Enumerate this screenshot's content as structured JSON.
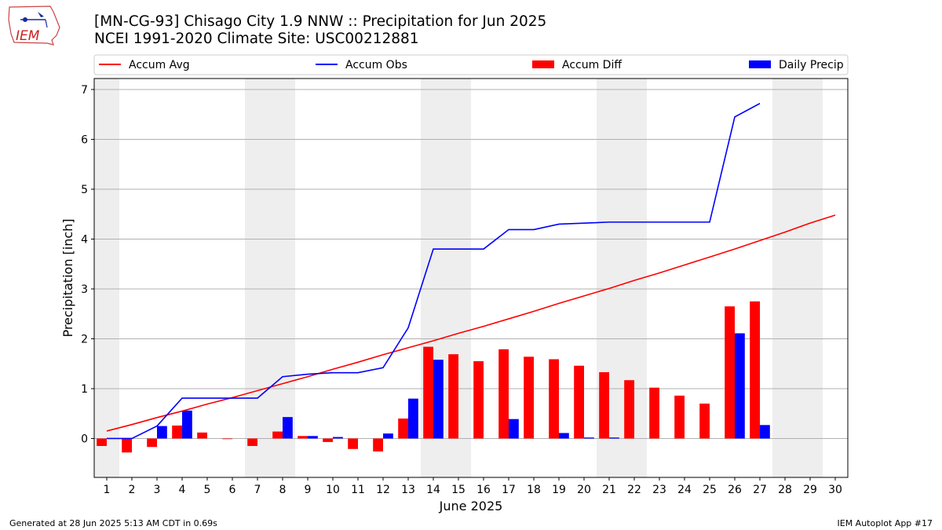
{
  "header": {
    "title_line1": "[MN-CG-93] Chisago City 1.9 NNW :: Precipitation for Jun 2025",
    "title_line2": "NCEI 1991-2020 Climate Site: USC00212881"
  },
  "logo": {
    "text": "IEM"
  },
  "footer": {
    "generated": "Generated at 28 Jun 2025 5:13 AM CDT in 0.69s",
    "app": "IEM Autoplot App #17"
  },
  "colors": {
    "accum_avg": "#ff0000",
    "accum_obs": "#0000ff",
    "accum_diff": "#ff0000",
    "daily_precip": "#0000ff",
    "weekend_band": "#eeeeee",
    "grid": "#b0b0b0"
  },
  "chart_data": {
    "type": "bar",
    "xlabel": "June 2025",
    "ylabel": "Precipitation [inch]",
    "ylim": [
      -0.78,
      7.22
    ],
    "xlim": [
      0.5,
      30.5
    ],
    "yticks": [
      0,
      1,
      2,
      3,
      4,
      5,
      6,
      7
    ],
    "categories": [
      "1",
      "2",
      "3",
      "4",
      "5",
      "6",
      "7",
      "8",
      "9",
      "10",
      "11",
      "12",
      "13",
      "14",
      "15",
      "16",
      "17",
      "18",
      "19",
      "20",
      "21",
      "22",
      "23",
      "24",
      "25",
      "26",
      "27",
      "28",
      "29",
      "30"
    ],
    "weekend_days": [
      1,
      7,
      8,
      14,
      15,
      21,
      22,
      28,
      29
    ],
    "grid": true,
    "legend_position": "top",
    "legend": [
      "Accum Avg",
      "Accum Obs",
      "Accum Diff",
      "Daily Precip"
    ],
    "series": [
      {
        "name": "Accum Avg",
        "kind": "line",
        "x": [
          1,
          2,
          3,
          4,
          5,
          6,
          7,
          8,
          9,
          10,
          11,
          12,
          13,
          14,
          15,
          16,
          17,
          18,
          19,
          20,
          21,
          22,
          23,
          24,
          25,
          26,
          27,
          28,
          29,
          30
        ],
        "values": [
          0.15,
          0.28,
          0.42,
          0.55,
          0.69,
          0.82,
          0.96,
          1.1,
          1.24,
          1.39,
          1.53,
          1.68,
          1.82,
          1.96,
          2.11,
          2.25,
          2.4,
          2.55,
          2.71,
          2.86,
          3.01,
          3.17,
          3.32,
          3.48,
          3.64,
          3.8,
          3.97,
          4.14,
          4.32,
          4.48
        ]
      },
      {
        "name": "Accum Obs",
        "kind": "line",
        "x": [
          1,
          2,
          3,
          4,
          5,
          6,
          7,
          8,
          9,
          10,
          11,
          12,
          13,
          14,
          15,
          16,
          17,
          18,
          19,
          20,
          21,
          22,
          23,
          24,
          25,
          26,
          27
        ],
        "values": [
          0.0,
          0.0,
          0.25,
          0.81,
          0.81,
          0.81,
          0.81,
          1.24,
          1.29,
          1.32,
          1.32,
          1.42,
          2.22,
          3.8,
          3.8,
          3.8,
          4.19,
          4.19,
          4.3,
          4.32,
          4.34,
          4.34,
          4.34,
          4.34,
          4.34,
          6.45,
          6.72
        ]
      },
      {
        "name": "Accum Diff",
        "kind": "bar",
        "x": [
          1,
          2,
          3,
          4,
          5,
          6,
          7,
          8,
          9,
          10,
          11,
          12,
          13,
          14,
          15,
          16,
          17,
          18,
          19,
          20,
          21,
          22,
          23,
          24,
          25,
          26,
          27
        ],
        "values": [
          -0.15,
          -0.28,
          -0.17,
          0.26,
          0.12,
          -0.01,
          -0.15,
          0.14,
          0.05,
          -0.07,
          -0.21,
          -0.26,
          0.4,
          1.84,
          1.69,
          1.55,
          1.79,
          1.64,
          1.59,
          1.46,
          1.33,
          1.17,
          1.02,
          0.86,
          0.7,
          2.65,
          2.75
        ]
      },
      {
        "name": "Daily Precip",
        "kind": "bar",
        "x": [
          1,
          2,
          3,
          4,
          5,
          6,
          7,
          8,
          9,
          10,
          11,
          12,
          13,
          14,
          15,
          16,
          17,
          18,
          19,
          20,
          21,
          22,
          23,
          24,
          25,
          26,
          27
        ],
        "values": [
          0.0,
          0.0,
          0.25,
          0.56,
          0.0,
          0.0,
          0.0,
          0.43,
          0.05,
          0.03,
          0.0,
          0.1,
          0.8,
          1.58,
          0.0,
          0.0,
          0.39,
          0.0,
          0.11,
          0.02,
          0.02,
          0.0,
          0.0,
          0.0,
          0.0,
          2.11,
          0.27
        ]
      }
    ]
  }
}
